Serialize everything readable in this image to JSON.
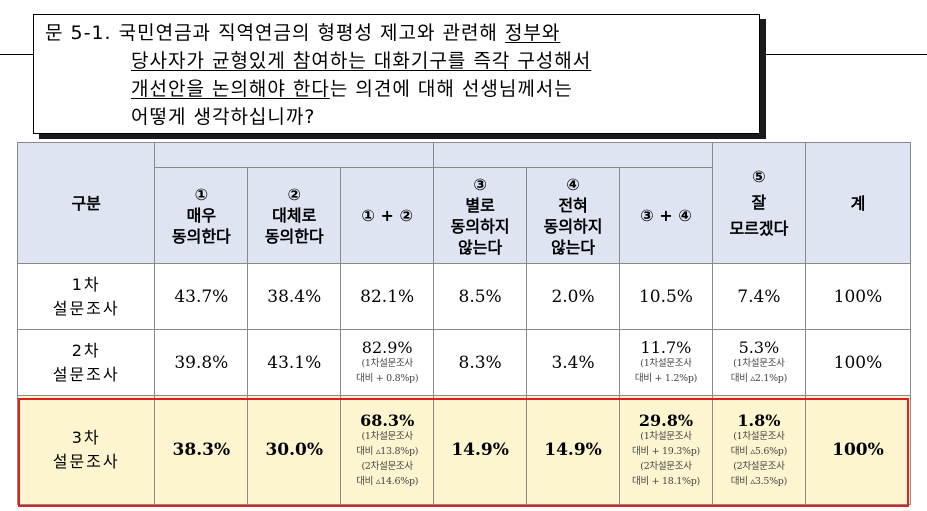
{
  "question": {
    "line1_prefix": "문 5-1. 국민연금과 직역연금의 형평성 제고와 관련해 ",
    "line1_underlined": "정부와",
    "line2_underlined": "당사자가 균형있게 참여하는 대화기구를 즉각 구성해서",
    "line3_underlined": "개선안을 논의해야 한다",
    "line3_suffix": "는 의견에 대해 선생님께서는",
    "line4": "어떻게 생각하십니까?"
  },
  "table": {
    "headers": {
      "category": "구분",
      "col1_num": "①",
      "col1_l1": "매우",
      "col1_l2": "동의한다",
      "col2_num": "②",
      "col2_l1": "대체로",
      "col2_l2": "동의한다",
      "sum12": "① + ②",
      "col3_num": "③",
      "col3_l1": "별로",
      "col3_l2": "동의하지",
      "col3_l3": "않는다",
      "col4_num": "④",
      "col4_l1": "전혀",
      "col4_l2": "동의하지",
      "col4_l3": "않는다",
      "sum34": "③ + ④",
      "col5_num": "⑤",
      "col5_l1": "잘",
      "col5_l2": "모르겠다",
      "total": "계"
    },
    "rows": [
      {
        "label_l1": "1차",
        "label_l2": "설문조사",
        "c1": "43.7%",
        "c2": "38.4%",
        "s12": "82.1%",
        "c3": "8.5%",
        "c4": "2.0%",
        "s34": "10.5%",
        "c5": "7.4%",
        "total": "100%"
      },
      {
        "label_l1": "2차",
        "label_l2": "설문조사",
        "c1": "39.8%",
        "c2": "43.1%",
        "s12": "82.9%",
        "s12_n1": "(1차설문조사",
        "s12_n2": "대비 + 0.8%p)",
        "c3": "8.3%",
        "c4": "3.4%",
        "s34": "11.7%",
        "s34_n1": "(1차설문조사",
        "s34_n2": "대비 + 1.2%p)",
        "c5": "5.3%",
        "c5_n1": "(1차설문조사",
        "c5_n2": "대비 ▵2.1%p)",
        "total": "100%"
      },
      {
        "label_l1": "3차",
        "label_l2": "설문조사",
        "c1": "38.3%",
        "c2": "30.0%",
        "s12": "68.3%",
        "s12_n1": "(1차설문조사",
        "s12_n2": "대비 ▵13.8%p)",
        "s12_n3": "(2차설문조사",
        "s12_n4": "대비 ▵14.6%p)",
        "c3": "14.9%",
        "c4": "14.9%",
        "s34": "29.8%",
        "s34_n1": "(1차설문조사",
        "s34_n2": "대비 + 19.3%p)",
        "s34_n3": "(2차설문조사",
        "s34_n4": "대비 + 18.1%p)",
        "c5": "1.8%",
        "c5_n1": "(1차설문조사",
        "c5_n2": "대비 ▵5.6%p)",
        "c5_n3": "(2차설문조사",
        "c5_n4": "대비 ▵3.5%p)",
        "total": "100%"
      }
    ]
  },
  "colors": {
    "header_bg": "#dfe4f3",
    "highlight_row_bg": "#fdf5cf",
    "highlight_border": "#e02020"
  }
}
